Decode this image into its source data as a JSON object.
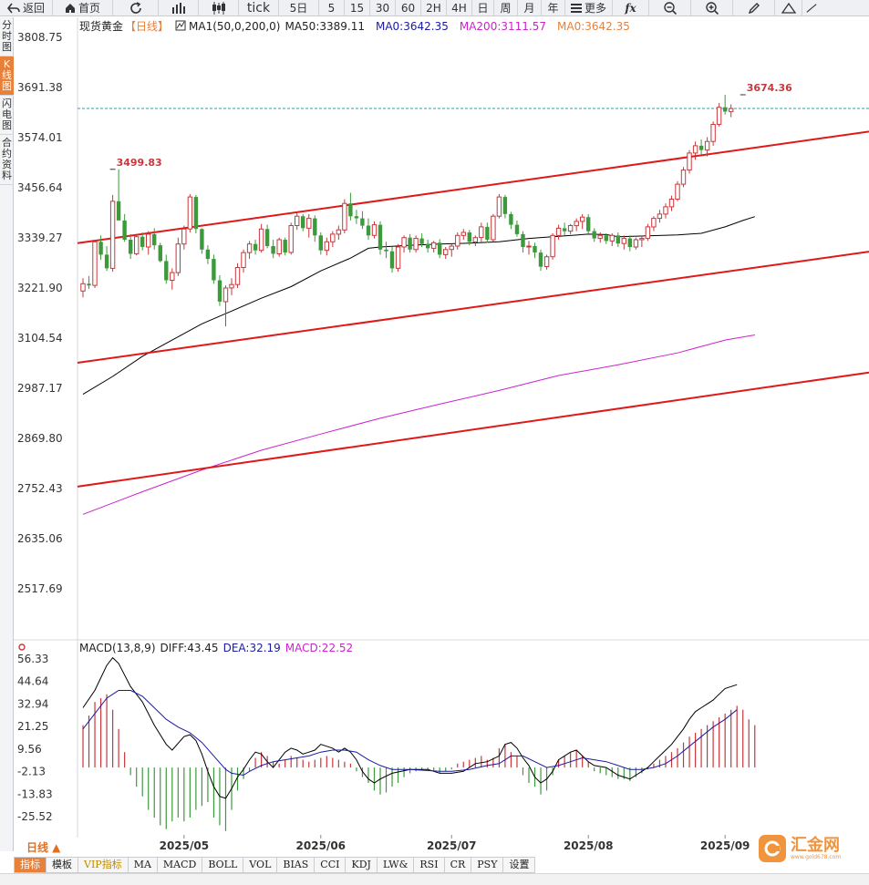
{
  "toolbar": {
    "back_label": "返回",
    "home_label": "首页",
    "tick_label": "tick",
    "periods": [
      "5日",
      "5",
      "15",
      "30",
      "60",
      "2H",
      "4H",
      "日",
      "周",
      "月",
      "年"
    ],
    "more_label": "更多"
  },
  "side_tabs": [
    "分时图",
    "K线图",
    "闪电图",
    "合约资料"
  ],
  "side_active": 1,
  "legend": {
    "symbol": "现货黄金",
    "period": "【日线】",
    "ma_name": "MA1(50,0,200,0)",
    "ma50": "MA50:3389.11",
    "ma0a": "MA0:3642.35",
    "ma200": "MA200:3111.57",
    "ma0b": "MA0:3642.35"
  },
  "macd_legend": {
    "name": "MACD(13,8,9)",
    "diff": "DIFF:43.45",
    "dea": "DEA:32.19",
    "macd": "MACD:22.52"
  },
  "period_button": "日线 ▲",
  "bottom_tabs": [
    "指标",
    "模板",
    "VIP指标",
    "MA",
    "MACD",
    "BOLL",
    "VOL",
    "BIAS",
    "CCI",
    "KDJ",
    "LW&",
    "RSI",
    "CR",
    "PSY",
    "设置"
  ],
  "bottom_active": 0,
  "watermark": {
    "text": "汇金网",
    "url": "www.gold678.com"
  },
  "colors": {
    "up": "#c8373c",
    "down": "#3c9a3c",
    "ma50": "#000000",
    "ma200": "#cc22cc",
    "ma0": "#e8803a",
    "channel": "#e01818",
    "diff": "#000000",
    "dea": "#1a1aa6",
    "hist_up": "#c8373c",
    "hist_down": "#3c9a3c",
    "accent": "#e8803a"
  },
  "chart_data": {
    "type": "candlestick",
    "price_axis": [
      "3808.75",
      "3691.38",
      "3574.01",
      "3456.64",
      "3339.27",
      "3221.90",
      "3104.54",
      "2987.17",
      "2869.80",
      "2752.43",
      "2635.06",
      "2517.69"
    ],
    "macd_axis": [
      "56.33",
      "44.64",
      "32.94",
      "21.25",
      "9.56",
      "-2.13",
      "-13.83",
      "-25.52"
    ],
    "x_labels": [
      {
        "label": "2025/05",
        "index": 17
      },
      {
        "label": "2025/06",
        "index": 40
      },
      {
        "label": "2025/07",
        "index": 62
      },
      {
        "label": "2025/08",
        "index": 85
      },
      {
        "label": "2025/09",
        "index": 108
      }
    ],
    "high_label": {
      "text": "3674.36",
      "index": 111,
      "value": 3674.36
    },
    "high_label2": {
      "text": "3499.83",
      "index": 5,
      "value": 3499.83
    },
    "last_price": 3642.35,
    "candles": [
      [
        3215,
        3245,
        3200,
        3232
      ],
      [
        3232,
        3250,
        3220,
        3228
      ],
      [
        3228,
        3335,
        3222,
        3330
      ],
      [
        3330,
        3345,
        3288,
        3300
      ],
      [
        3300,
        3320,
        3262,
        3268
      ],
      [
        3268,
        3440,
        3260,
        3425
      ],
      [
        3425,
        3500,
        3385,
        3380
      ],
      [
        3380,
        3395,
        3330,
        3335
      ],
      [
        3335,
        3348,
        3290,
        3302
      ],
      [
        3302,
        3345,
        3298,
        3342
      ],
      [
        3342,
        3352,
        3310,
        3318
      ],
      [
        3318,
        3355,
        3300,
        3348
      ],
      [
        3348,
        3362,
        3312,
        3322
      ],
      [
        3322,
        3328,
        3282,
        3285
      ],
      [
        3285,
        3300,
        3232,
        3240
      ],
      [
        3240,
        3268,
        3218,
        3258
      ],
      [
        3258,
        3340,
        3250,
        3325
      ],
      [
        3325,
        3368,
        3312,
        3360
      ],
      [
        3360,
        3442,
        3352,
        3435
      ],
      [
        3435,
        3440,
        3350,
        3360
      ],
      [
        3360,
        3362,
        3302,
        3312
      ],
      [
        3312,
        3322,
        3278,
        3290
      ],
      [
        3290,
        3300,
        3232,
        3240
      ],
      [
        3240,
        3252,
        3180,
        3190
      ],
      [
        3190,
        3228,
        3132,
        3222
      ],
      [
        3222,
        3245,
        3205,
        3230
      ],
      [
        3230,
        3280,
        3222,
        3270
      ],
      [
        3270,
        3312,
        3258,
        3305
      ],
      [
        3305,
        3332,
        3290,
        3325
      ],
      [
        3325,
        3335,
        3300,
        3310
      ],
      [
        3310,
        3372,
        3305,
        3360
      ],
      [
        3360,
        3370,
        3315,
        3320
      ],
      [
        3320,
        3335,
        3292,
        3302
      ],
      [
        3302,
        3340,
        3295,
        3335
      ],
      [
        3335,
        3340,
        3298,
        3305
      ],
      [
        3305,
        3375,
        3300,
        3368
      ],
      [
        3368,
        3400,
        3358,
        3390
      ],
      [
        3390,
        3395,
        3355,
        3362
      ],
      [
        3362,
        3395,
        3340,
        3385
      ],
      [
        3385,
        3392,
        3330,
        3345
      ],
      [
        3345,
        3352,
        3300,
        3310
      ],
      [
        3310,
        3340,
        3298,
        3330
      ],
      [
        3330,
        3355,
        3318,
        3348
      ],
      [
        3348,
        3368,
        3335,
        3358
      ],
      [
        3358,
        3430,
        3350,
        3420
      ],
      [
        3420,
        3445,
        3380,
        3390
      ],
      [
        3390,
        3405,
        3372,
        3385
      ],
      [
        3385,
        3402,
        3360,
        3368
      ],
      [
        3368,
        3385,
        3335,
        3345
      ],
      [
        3345,
        3378,
        3338,
        3370
      ],
      [
        3370,
        3378,
        3300,
        3312
      ],
      [
        3312,
        3330,
        3292,
        3308
      ],
      [
        3308,
        3318,
        3258,
        3268
      ],
      [
        3268,
        3325,
        3260,
        3318
      ],
      [
        3318,
        3345,
        3305,
        3340
      ],
      [
        3340,
        3348,
        3305,
        3312
      ],
      [
        3312,
        3345,
        3305,
        3338
      ],
      [
        3338,
        3350,
        3318,
        3325
      ],
      [
        3325,
        3335,
        3305,
        3315
      ],
      [
        3315,
        3332,
        3305,
        3328
      ],
      [
        3328,
        3336,
        3292,
        3300
      ],
      [
        3300,
        3318,
        3290,
        3312
      ],
      [
        3312,
        3325,
        3295,
        3320
      ],
      [
        3320,
        3352,
        3312,
        3345
      ],
      [
        3345,
        3360,
        3335,
        3352
      ],
      [
        3352,
        3358,
        3322,
        3330
      ],
      [
        3330,
        3345,
        3320,
        3340
      ],
      [
        3340,
        3375,
        3330,
        3365
      ],
      [
        3365,
        3375,
        3328,
        3335
      ],
      [
        3335,
        3395,
        3330,
        3390
      ],
      [
        3390,
        3442,
        3385,
        3435
      ],
      [
        3435,
        3440,
        3385,
        3395
      ],
      [
        3395,
        3400,
        3360,
        3370
      ],
      [
        3370,
        3380,
        3342,
        3348
      ],
      [
        3348,
        3355,
        3305,
        3318
      ],
      [
        3318,
        3332,
        3300,
        3320
      ],
      [
        3320,
        3328,
        3292,
        3305
      ],
      [
        3305,
        3312,
        3262,
        3272
      ],
      [
        3272,
        3300,
        3265,
        3295
      ],
      [
        3295,
        3350,
        3288,
        3345
      ],
      [
        3345,
        3370,
        3335,
        3362
      ],
      [
        3362,
        3375,
        3345,
        3355
      ],
      [
        3355,
        3372,
        3348,
        3368
      ],
      [
        3368,
        3385,
        3355,
        3378
      ],
      [
        3378,
        3395,
        3360,
        3388
      ],
      [
        3388,
        3395,
        3350,
        3355
      ],
      [
        3355,
        3362,
        3330,
        3338
      ],
      [
        3338,
        3352,
        3328,
        3345
      ],
      [
        3345,
        3350,
        3325,
        3332
      ],
      [
        3332,
        3350,
        3320,
        3345
      ],
      [
        3345,
        3352,
        3318,
        3326
      ],
      [
        3326,
        3345,
        3312,
        3338
      ],
      [
        3338,
        3345,
        3308,
        3318
      ],
      [
        3318,
        3340,
        3312,
        3335
      ],
      [
        3335,
        3345,
        3318,
        3338
      ],
      [
        3338,
        3372,
        3332,
        3365
      ],
      [
        3365,
        3390,
        3355,
        3385
      ],
      [
        3385,
        3405,
        3375,
        3395
      ],
      [
        3395,
        3420,
        3385,
        3412
      ],
      [
        3412,
        3438,
        3402,
        3430
      ],
      [
        3430,
        3472,
        3425,
        3465
      ],
      [
        3465,
        3505,
        3458,
        3498
      ],
      [
        3498,
        3545,
        3490,
        3538
      ],
      [
        3538,
        3565,
        3522,
        3555
      ],
      [
        3555,
        3570,
        3535,
        3545
      ],
      [
        3545,
        3575,
        3530,
        3565
      ],
      [
        3565,
        3612,
        3555,
        3605
      ],
      [
        3605,
        3655,
        3600,
        3645
      ],
      [
        3645,
        3674,
        3628,
        3635
      ],
      [
        3635,
        3652,
        3622,
        3642
      ]
    ],
    "ma50": [
      [
        0,
        2973
      ],
      [
        5,
        3015
      ],
      [
        10,
        3062
      ],
      [
        15,
        3100
      ],
      [
        20,
        3138
      ],
      [
        25,
        3168
      ],
      [
        30,
        3198
      ],
      [
        35,
        3225
      ],
      [
        40,
        3262
      ],
      [
        45,
        3292
      ],
      [
        48,
        3315
      ],
      [
        50,
        3318
      ],
      [
        55,
        3322
      ],
      [
        60,
        3325
      ],
      [
        65,
        3327
      ],
      [
        70,
        3330
      ],
      [
        75,
        3338
      ],
      [
        80,
        3343
      ],
      [
        85,
        3348
      ],
      [
        88,
        3347
      ],
      [
        90,
        3342
      ],
      [
        95,
        3344
      ],
      [
        100,
        3346
      ],
      [
        104,
        3350
      ],
      [
        108,
        3365
      ],
      [
        111,
        3380
      ],
      [
        113,
        3389
      ]
    ],
    "ma200": [
      [
        0,
        2692
      ],
      [
        10,
        2745
      ],
      [
        20,
        2796
      ],
      [
        30,
        2842
      ],
      [
        40,
        2880
      ],
      [
        50,
        2917
      ],
      [
        60,
        2950
      ],
      [
        70,
        2982
      ],
      [
        80,
        3017
      ],
      [
        90,
        3042
      ],
      [
        100,
        3070
      ],
      [
        108,
        3100
      ],
      [
        113,
        3112
      ]
    ],
    "channel_lines": [
      {
        "from": [
          3327,
          3588
        ],
        "to_x_end": true
      },
      {
        "from": [
          3047,
          3307
        ]
      },
      {
        "from": [
          2757,
          3024
        ]
      }
    ],
    "macd_diff": [
      [
        0,
        31
      ],
      [
        2,
        40
      ],
      [
        4,
        53
      ],
      [
        5,
        57
      ],
      [
        6,
        54
      ],
      [
        8,
        42
      ],
      [
        10,
        34
      ],
      [
        12,
        22
      ],
      [
        14,
        12
      ],
      [
        15,
        9
      ],
      [
        17,
        16
      ],
      [
        18,
        17
      ],
      [
        19,
        14
      ],
      [
        20,
        7
      ],
      [
        21,
        -2
      ],
      [
        22,
        -10
      ],
      [
        23,
        -15
      ],
      [
        24,
        -16
      ],
      [
        25,
        -11
      ],
      [
        26,
        -5
      ],
      [
        27,
        -1
      ],
      [
        28,
        4
      ],
      [
        29,
        8
      ],
      [
        30,
        7
      ],
      [
        31,
        3
      ],
      [
        32,
        0
      ],
      [
        33,
        4
      ],
      [
        34,
        8
      ],
      [
        35,
        10
      ],
      [
        36,
        9
      ],
      [
        37,
        7
      ],
      [
        38,
        8
      ],
      [
        39,
        9
      ],
      [
        40,
        12
      ],
      [
        41,
        11
      ],
      [
        42,
        10
      ],
      [
        43,
        8
      ],
      [
        44,
        10
      ],
      [
        45,
        8
      ],
      [
        46,
        4
      ],
      [
        47,
        -2
      ],
      [
        48,
        -6
      ],
      [
        49,
        -8
      ],
      [
        50,
        -6
      ],
      [
        52,
        -3
      ],
      [
        55,
        -1
      ],
      [
        58,
        -1
      ],
      [
        60,
        -3
      ],
      [
        62,
        -3
      ],
      [
        64,
        -2
      ],
      [
        66,
        2
      ],
      [
        68,
        3
      ],
      [
        70,
        6
      ],
      [
        71,
        12
      ],
      [
        72,
        13
      ],
      [
        73,
        10
      ],
      [
        74,
        5
      ],
      [
        75,
        1
      ],
      [
        76,
        -5
      ],
      [
        77,
        -8
      ],
      [
        78,
        -6
      ],
      [
        79,
        -2
      ],
      [
        80,
        4
      ],
      [
        81,
        6
      ],
      [
        82,
        8
      ],
      [
        83,
        9
      ],
      [
        84,
        6
      ],
      [
        85,
        3
      ],
      [
        86,
        1
      ],
      [
        88,
        0
      ],
      [
        89,
        -2
      ],
      [
        90,
        -4
      ],
      [
        91,
        -5
      ],
      [
        92,
        -6
      ],
      [
        93,
        -4
      ],
      [
        94,
        -2
      ],
      [
        95,
        0
      ],
      [
        96,
        3
      ],
      [
        97,
        6
      ],
      [
        98,
        9
      ],
      [
        99,
        12
      ],
      [
        100,
        16
      ],
      [
        101,
        20
      ],
      [
        102,
        25
      ],
      [
        103,
        29
      ],
      [
        104,
        31
      ],
      [
        105,
        33
      ],
      [
        106,
        35
      ],
      [
        107,
        38
      ],
      [
        108,
        41
      ],
      [
        109,
        42
      ],
      [
        110,
        43
      ]
    ],
    "macd_dea": [
      [
        0,
        20
      ],
      [
        2,
        28
      ],
      [
        4,
        36
      ],
      [
        5,
        38
      ],
      [
        6,
        40
      ],
      [
        8,
        40
      ],
      [
        10,
        37
      ],
      [
        12,
        31
      ],
      [
        14,
        25
      ],
      [
        16,
        21
      ],
      [
        18,
        18
      ],
      [
        20,
        13
      ],
      [
        22,
        6
      ],
      [
        24,
        -1
      ],
      [
        25,
        -3
      ],
      [
        27,
        -4
      ],
      [
        28,
        -2
      ],
      [
        30,
        1
      ],
      [
        32,
        3
      ],
      [
        34,
        4
      ],
      [
        36,
        5
      ],
      [
        38,
        6
      ],
      [
        40,
        8
      ],
      [
        42,
        9
      ],
      [
        44,
        9
      ],
      [
        46,
        8
      ],
      [
        48,
        4
      ],
      [
        50,
        1
      ],
      [
        52,
        -1
      ],
      [
        55,
        -1
      ],
      [
        60,
        -2
      ],
      [
        62,
        -2
      ],
      [
        65,
        -1
      ],
      [
        68,
        1
      ],
      [
        70,
        2
      ],
      [
        72,
        6
      ],
      [
        74,
        6
      ],
      [
        76,
        3
      ],
      [
        78,
        0
      ],
      [
        80,
        1
      ],
      [
        82,
        3
      ],
      [
        84,
        5
      ],
      [
        86,
        4
      ],
      [
        88,
        3
      ],
      [
        90,
        1
      ],
      [
        92,
        -1
      ],
      [
        94,
        -1
      ],
      [
        96,
        0
      ],
      [
        98,
        2
      ],
      [
        100,
        6
      ],
      [
        102,
        11
      ],
      [
        104,
        16
      ],
      [
        106,
        21
      ],
      [
        108,
        25
      ],
      [
        110,
        30
      ]
    ],
    "macd_hist": [
      22,
      27,
      34,
      36,
      38,
      30,
      20,
      8,
      -4,
      -10,
      -15,
      -22,
      -26,
      -30,
      -32,
      -28,
      -26,
      -28,
      -26,
      -22,
      -20,
      -18,
      -26,
      -30,
      -33,
      -22,
      -12,
      -6,
      -2,
      5,
      8,
      6,
      3,
      2,
      4,
      6,
      5,
      4,
      3,
      4,
      5,
      6,
      5,
      4,
      3,
      2,
      -2,
      -5,
      -8,
      -12,
      -14,
      -13,
      -10,
      -8,
      -5,
      -3,
      -2,
      -1,
      -1,
      -2,
      -3,
      -2,
      -1,
      2,
      3,
      4,
      5,
      6,
      4,
      5,
      10,
      12,
      8,
      6,
      -4,
      -8,
      -10,
      -14,
      -12,
      -4,
      4,
      6,
      8,
      9,
      6,
      3,
      -2,
      -3,
      -4,
      -5,
      -6,
      -6,
      -7,
      -5,
      -3,
      -1,
      2,
      4,
      6,
      8,
      10,
      13,
      16,
      18,
      20,
      22,
      24,
      26,
      28,
      30,
      32,
      30,
      25,
      22
    ]
  }
}
